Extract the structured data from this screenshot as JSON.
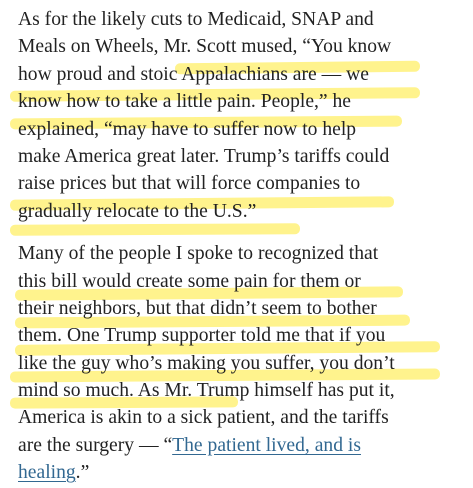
{
  "article": {
    "paragraphs": [
      {
        "lines": [
          [
            "As for the likely cuts to Medicaid, SNAP and"
          ],
          [
            "Meals on Wheels, Mr. Scott mused, “You know"
          ],
          [
            "how proud and stoic Appalachians are — we"
          ],
          [
            "know how to take a little pain. People,” he"
          ],
          [
            "explained, “may have to suffer now to help"
          ],
          [
            "make America great later. Trump’s tariffs could"
          ],
          [
            "raise prices but that will force companies to"
          ],
          [
            "gradually relocate to the U.S.”"
          ]
        ]
      },
      {
        "lines": [
          [
            "Many of the people I spoke to recognized that"
          ],
          [
            "this bill would create some pain for them or"
          ],
          [
            "their neighbors, but that didn’t seem to bother"
          ],
          [
            "them. One Trump supporter told me that if you"
          ],
          [
            "like the guy who’s making you suffer, you don’t"
          ],
          [
            "mind so much. As Mr. Trump himself has put it,"
          ],
          [
            "America is akin to a sick patient, and the tariffs"
          ],
          [
            "are the surgery — “",
            {
              "text": "The patient lived, and is",
              "link": true
            }
          ],
          [
            {
              "text": "healing",
              "link": true
            },
            ".”"
          ]
        ]
      }
    ]
  }
}
